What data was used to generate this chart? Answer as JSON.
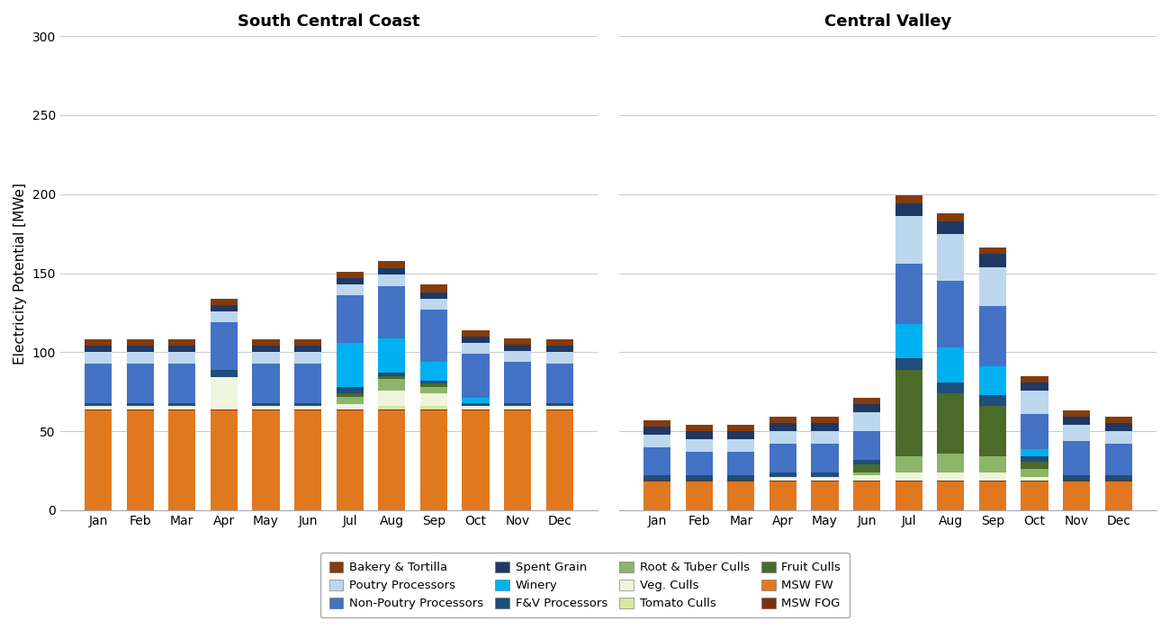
{
  "months": [
    "Jan",
    "Feb",
    "Mar",
    "Apr",
    "May",
    "Jun",
    "Jul",
    "Aug",
    "Sep",
    "Oct",
    "Nov",
    "Dec"
  ],
  "categories": [
    "MSW FW",
    "MSW FOG",
    "Tomato Culls",
    "Veg. Culls",
    "Root & Tuber Culls",
    "Fruit Culls",
    "F&V Processors",
    "Winery",
    "Non-Poutry Processors",
    "Poutry Processors",
    "Spent Grain",
    "Bakery & Tortilla"
  ],
  "colors": {
    "MSW FW": "#E07820",
    "MSW FOG": "#7B3010",
    "Tomato Culls": "#D6E8A0",
    "Veg. Culls": "#EEF5DC",
    "Root & Tuber Culls": "#8DB56A",
    "Fruit Culls": "#4A6B2A",
    "F&V Processors": "#1F4E79",
    "Winery": "#00B0F0",
    "Non-Poutry Processors": "#4472C4",
    "Poutry Processors": "#BDD7EE",
    "Spent Grain": "#1F3864",
    "Bakery & Tortilla": "#843C0C"
  },
  "scc": {
    "MSW FW": [
      63,
      63,
      63,
      63,
      63,
      63,
      63,
      63,
      63,
      63,
      63,
      63
    ],
    "MSW FOG": [
      1,
      1,
      1,
      1,
      1,
      1,
      1,
      1,
      1,
      1,
      1,
      1
    ],
    "Tomato Culls": [
      0,
      0,
      0,
      0,
      0,
      0,
      0,
      2,
      2,
      0,
      0,
      0
    ],
    "Veg. Culls": [
      2,
      2,
      2,
      20,
      2,
      2,
      3,
      10,
      8,
      2,
      2,
      2
    ],
    "Root & Tuber Culls": [
      0,
      0,
      0,
      0,
      0,
      0,
      5,
      7,
      4,
      0,
      0,
      0
    ],
    "Fruit Culls": [
      0,
      0,
      0,
      0,
      0,
      0,
      2,
      2,
      2,
      0,
      0,
      0
    ],
    "F&V Processors": [
      2,
      2,
      2,
      5,
      2,
      2,
      4,
      2,
      2,
      2,
      2,
      2
    ],
    "Winery": [
      0,
      0,
      0,
      0,
      0,
      0,
      28,
      22,
      12,
      3,
      0,
      0
    ],
    "Non-Poutry Processors": [
      25,
      25,
      25,
      30,
      25,
      25,
      30,
      33,
      33,
      28,
      26,
      25
    ],
    "Poutry Processors": [
      7,
      7,
      7,
      7,
      7,
      7,
      7,
      7,
      7,
      7,
      7,
      7
    ],
    "Spent Grain": [
      4,
      4,
      4,
      4,
      4,
      4,
      4,
      4,
      4,
      4,
      4,
      4
    ],
    "Bakery & Tortilla": [
      4,
      4,
      4,
      4,
      4,
      4,
      4,
      5,
      5,
      4,
      4,
      4
    ]
  },
  "cv": {
    "MSW FW": [
      18,
      18,
      18,
      18,
      18,
      18,
      18,
      18,
      18,
      18,
      18,
      18
    ],
    "MSW FOG": [
      1,
      1,
      1,
      1,
      1,
      1,
      1,
      1,
      1,
      1,
      1,
      1
    ],
    "Tomato Culls": [
      0,
      0,
      0,
      0,
      0,
      0,
      0,
      0,
      0,
      0,
      0,
      0
    ],
    "Veg. Culls": [
      0,
      0,
      0,
      2,
      2,
      3,
      5,
      5,
      5,
      2,
      0,
      0
    ],
    "Root & Tuber Culls": [
      0,
      0,
      0,
      0,
      0,
      2,
      10,
      12,
      10,
      5,
      0,
      0
    ],
    "Fruit Culls": [
      0,
      0,
      0,
      0,
      0,
      5,
      55,
      38,
      32,
      5,
      0,
      0
    ],
    "F&V Processors": [
      3,
      3,
      3,
      3,
      3,
      3,
      7,
      7,
      7,
      3,
      3,
      3
    ],
    "Winery": [
      0,
      0,
      0,
      0,
      0,
      0,
      22,
      22,
      18,
      5,
      0,
      0
    ],
    "Non-Poutry Processors": [
      18,
      15,
      15,
      18,
      18,
      18,
      38,
      42,
      38,
      22,
      22,
      20
    ],
    "Poutry Processors": [
      8,
      8,
      8,
      8,
      8,
      12,
      30,
      30,
      25,
      15,
      10,
      8
    ],
    "Spent Grain": [
      5,
      5,
      5,
      5,
      5,
      5,
      8,
      8,
      8,
      5,
      5,
      5
    ],
    "Bakery & Tortilla": [
      4,
      4,
      4,
      4,
      4,
      4,
      5,
      5,
      4,
      4,
      4,
      4
    ]
  },
  "ylim": [
    0,
    300
  ],
  "yticks": [
    0,
    50,
    100,
    150,
    200,
    250,
    300
  ],
  "ylabel": "Electricity Potential [MWe]",
  "title_scc": "South Central Coast",
  "title_cv": "Central Valley",
  "title_fontsize": 13,
  "axis_fontsize": 11,
  "tick_fontsize": 10,
  "legend_fontsize": 9.5,
  "legend_order": [
    "Bakery & Tortilla",
    "Poutry Processors",
    "Non-Poutry Processors",
    "Spent Grain",
    "Winery",
    "F&V Processors",
    "Root & Tuber Culls",
    "Veg. Culls",
    "Tomato Culls",
    "Fruit Culls",
    "MSW FW",
    "MSW FOG"
  ]
}
